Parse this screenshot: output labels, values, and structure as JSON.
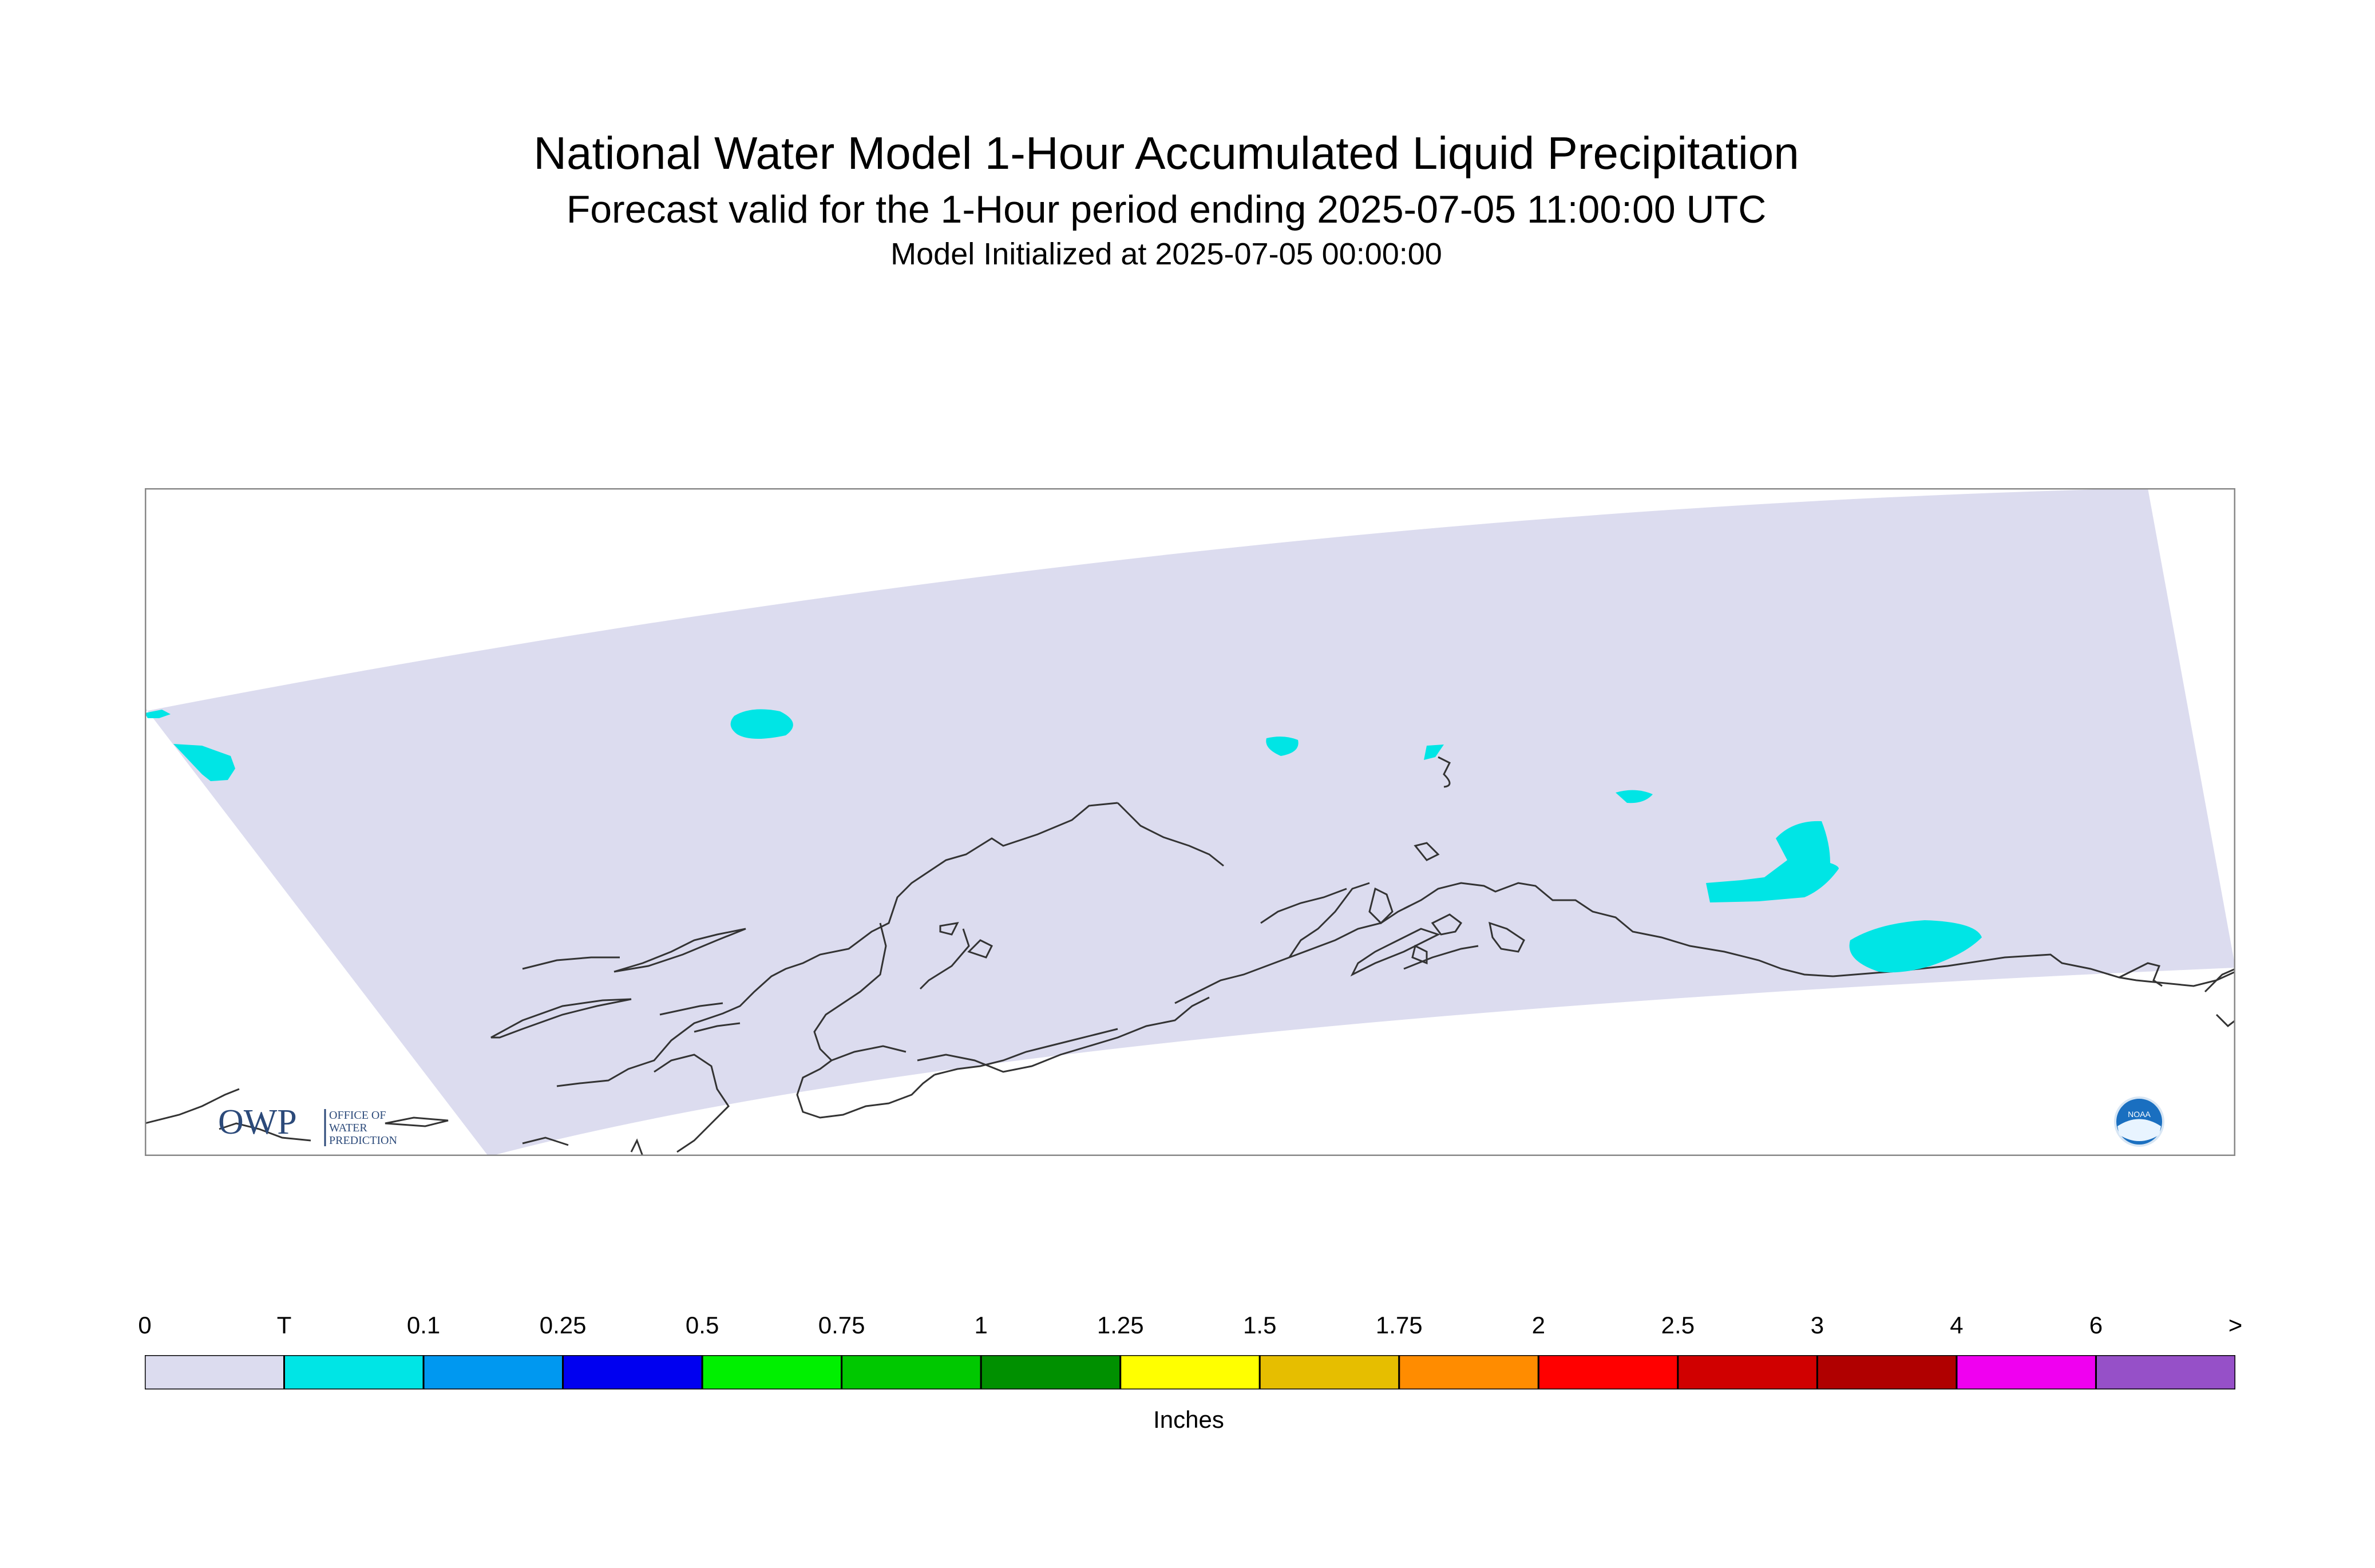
{
  "title": "National Water Model 1-Hour Accumulated Liquid Precipitation",
  "subtitle": "Forecast valid for the 1-Hour period ending 2025-07-05 11:00:00 UTC",
  "init_line": "Model Initialized at 2025-07-05 00:00:00",
  "colors": {
    "model_domain": "#dcdcef",
    "coastline": "#333333",
    "frame": "#888888",
    "precip_trace": "#00e5e5"
  },
  "legend": {
    "unit_label": "Inches",
    "ticks": [
      "0",
      "T",
      "0.1",
      "0.25",
      "0.5",
      "0.75",
      "1",
      "1.25",
      "1.5",
      "1.75",
      "2",
      "2.5",
      "3",
      "4",
      "6",
      ">"
    ],
    "colors": [
      "#dcdcef",
      "#00e5e5",
      "#0098f0",
      "#0000f0",
      "#00f000",
      "#00c800",
      "#009000",
      "#ffff00",
      "#e6be00",
      "#ff8c00",
      "#ff0000",
      "#d00000",
      "#b00000",
      "#f000f0",
      "#9650c8"
    ]
  },
  "logos": {
    "owp_text": "OWP",
    "owp_sub1": "OFFICE OF",
    "owp_sub2": "WATER",
    "owp_sub3": "PREDICTION",
    "noaa_text": "NOAA"
  }
}
